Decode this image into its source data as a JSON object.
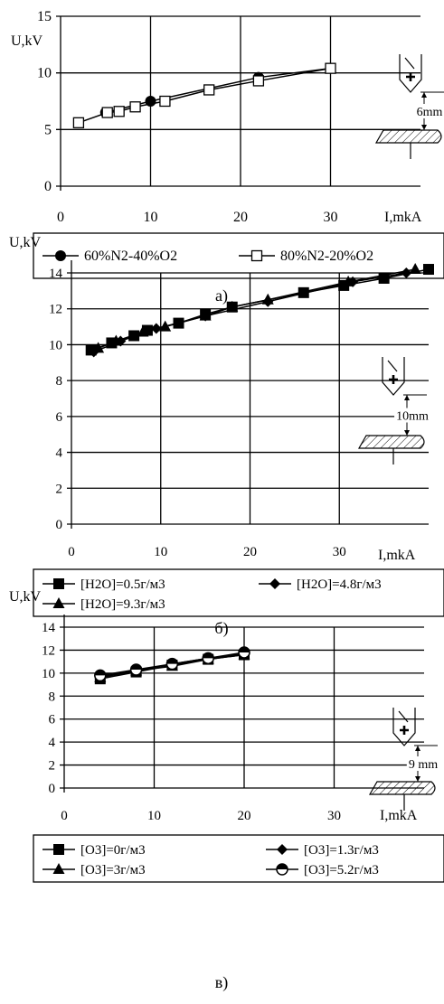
{
  "chart_data": [
    {
      "type": "line",
      "panel_label": "а)",
      "ylabel": "U,kV",
      "xlabel": "I,mkA",
      "xlim": [
        0,
        40
      ],
      "ylim": [
        0,
        15
      ],
      "x_ticks": [
        0,
        10,
        20,
        30
      ],
      "y_ticks": [
        0,
        5,
        10,
        15
      ],
      "inset_label": "6mm",
      "series": [
        {
          "name": "60%N2-40%O2",
          "marker": "circle",
          "x": [
            5,
            10,
            22,
            30
          ],
          "y": [
            6.5,
            7.5,
            9.6,
            10.4
          ]
        },
        {
          "name": "80%N2-20%O2",
          "marker": "square",
          "x": [
            2,
            5.2,
            6.5,
            8.3,
            11.6,
            16.5,
            22,
            30
          ],
          "y": [
            5.6,
            6.5,
            6.6,
            7.0,
            7.5,
            8.5,
            9.3,
            10.4
          ]
        }
      ]
    },
    {
      "type": "line",
      "panel_label": "б)",
      "ylabel": "U,kV",
      "xlabel": "I,mkA",
      "xlim": [
        0,
        40
      ],
      "ylim": [
        0,
        15
      ],
      "x_ticks": [
        0,
        10,
        20,
        30
      ],
      "y_ticks": [
        0,
        2,
        4,
        6,
        8,
        10,
        12,
        14
      ],
      "inset_label": "10mm",
      "series": [
        {
          "name": "[H2O]=0.5г/м3",
          "marker": "square",
          "x": [
            2.2,
            4.5,
            7,
            8.5,
            12,
            15,
            18,
            26,
            30.5,
            35,
            40
          ],
          "y": [
            9.7,
            10.1,
            10.5,
            10.8,
            11.2,
            11.7,
            12.1,
            12.9,
            13.3,
            13.7,
            14.2
          ]
        },
        {
          "name": "[H2O]=4.8г/м3",
          "marker": "diamond",
          "x": [
            2.5,
            5.5,
            9.5,
            15,
            22,
            31.5,
            37.5
          ],
          "y": [
            9.6,
            10.2,
            10.9,
            11.6,
            12.4,
            13.5,
            14.0
          ]
        },
        {
          "name": "[H2O]=9.3г/м3",
          "marker": "triangle",
          "x": [
            3,
            5,
            8,
            10.5,
            15,
            18,
            22,
            31,
            38.5
          ],
          "y": [
            9.8,
            10.2,
            10.7,
            11.0,
            11.6,
            12.1,
            12.5,
            13.5,
            14.2
          ]
        }
      ]
    },
    {
      "type": "line",
      "panel_label": "в)",
      "ylabel": "U,kV",
      "xlabel": "I,mkA",
      "xlim": [
        0,
        40
      ],
      "ylim": [
        0,
        15
      ],
      "x_ticks": [
        0,
        10,
        20,
        30
      ],
      "y_ticks": [
        0,
        2,
        4,
        6,
        8,
        10,
        12,
        14
      ],
      "inset_label": "9 mm",
      "series": [
        {
          "name": "[O3]=0г/м3",
          "marker": "square",
          "x": [
            4,
            8,
            12,
            16,
            20
          ],
          "y": [
            9.5,
            10.1,
            10.7,
            11.2,
            11.6
          ]
        },
        {
          "name": "[O3]=1.3г/м3",
          "marker": "diamond",
          "x": [
            4,
            8,
            12,
            16,
            20
          ],
          "y": [
            9.7,
            10.2,
            10.8,
            11.3,
            11.7
          ]
        },
        {
          "name": "[O3]=3г/м3",
          "marker": "triangle",
          "x": [
            4,
            8,
            12,
            16,
            20
          ],
          "y": [
            9.6,
            10.2,
            10.6,
            11.2,
            11.6
          ]
        },
        {
          "name": "[O3]=5.2г/м3",
          "marker": "halfcircle",
          "x": [
            4,
            8,
            12,
            16,
            20
          ],
          "y": [
            9.8,
            10.3,
            10.8,
            11.3,
            11.8
          ]
        }
      ]
    }
  ]
}
